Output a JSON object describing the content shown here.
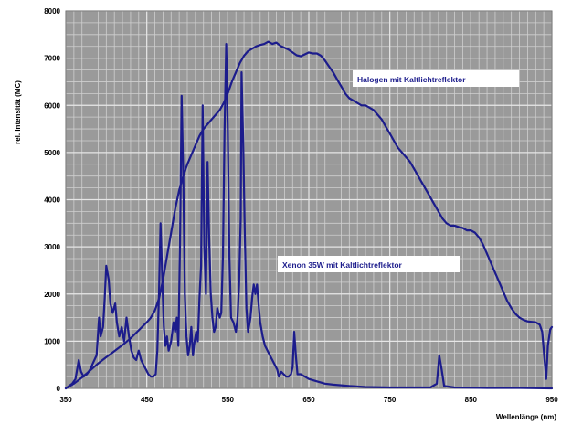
{
  "chart_data": {
    "type": "line",
    "xlabel": "Wellenlänge (nm)",
    "ylabel": "rel. Intensität (MC)",
    "xlim": [
      350,
      950
    ],
    "ylim": [
      0,
      8000
    ],
    "x_ticks": [
      350,
      450,
      550,
      650,
      750,
      850,
      950
    ],
    "x_tick_labels": [
      "350",
      "450",
      "550",
      "650",
      "750",
      "850",
      "950"
    ],
    "y_ticks": [
      0,
      1000,
      2000,
      3000,
      4000,
      5000,
      6000,
      7000,
      8000
    ],
    "y_tick_labels": [
      "0",
      "1000",
      "2000",
      "3000",
      "4000",
      "5000",
      "6000",
      "7000",
      "8000"
    ],
    "grid": true,
    "plot_background": "#9a9a9a",
    "grid_color": "#cfcfcf",
    "series": [
      {
        "name": "Halogen mit Kaltlichtreflektor",
        "color": "#1c1c8c",
        "points": [
          [
            350,
            0
          ],
          [
            360,
            100
          ],
          [
            370,
            230
          ],
          [
            380,
            380
          ],
          [
            390,
            530
          ],
          [
            400,
            660
          ],
          [
            410,
            790
          ],
          [
            420,
            920
          ],
          [
            430,
            1060
          ],
          [
            440,
            1230
          ],
          [
            450,
            1400
          ],
          [
            455,
            1500
          ],
          [
            460,
            1650
          ],
          [
            465,
            1900
          ],
          [
            470,
            2300
          ],
          [
            475,
            2800
          ],
          [
            480,
            3300
          ],
          [
            485,
            3800
          ],
          [
            490,
            4200
          ],
          [
            495,
            4500
          ],
          [
            500,
            4750
          ],
          [
            505,
            4950
          ],
          [
            510,
            5150
          ],
          [
            515,
            5350
          ],
          [
            520,
            5500
          ],
          [
            525,
            5600
          ],
          [
            530,
            5700
          ],
          [
            535,
            5800
          ],
          [
            540,
            5900
          ],
          [
            545,
            6050
          ],
          [
            550,
            6250
          ],
          [
            555,
            6500
          ],
          [
            560,
            6700
          ],
          [
            565,
            6900
          ],
          [
            570,
            7050
          ],
          [
            575,
            7150
          ],
          [
            580,
            7200
          ],
          [
            585,
            7250
          ],
          [
            590,
            7280
          ],
          [
            595,
            7300
          ],
          [
            600,
            7350
          ],
          [
            605,
            7300
          ],
          [
            610,
            7330
          ],
          [
            615,
            7260
          ],
          [
            620,
            7220
          ],
          [
            625,
            7180
          ],
          [
            630,
            7120
          ],
          [
            635,
            7060
          ],
          [
            640,
            7040
          ],
          [
            645,
            7080
          ],
          [
            650,
            7120
          ],
          [
            655,
            7100
          ],
          [
            660,
            7100
          ],
          [
            665,
            7050
          ],
          [
            670,
            6950
          ],
          [
            675,
            6820
          ],
          [
            680,
            6700
          ],
          [
            685,
            6550
          ],
          [
            690,
            6400
          ],
          [
            695,
            6250
          ],
          [
            700,
            6150
          ],
          [
            705,
            6100
          ],
          [
            710,
            6050
          ],
          [
            715,
            6000
          ],
          [
            720,
            6000
          ],
          [
            725,
            5950
          ],
          [
            730,
            5900
          ],
          [
            735,
            5800
          ],
          [
            740,
            5700
          ],
          [
            745,
            5550
          ],
          [
            750,
            5400
          ],
          [
            755,
            5250
          ],
          [
            760,
            5100
          ],
          [
            765,
            5000
          ],
          [
            770,
            4900
          ],
          [
            775,
            4800
          ],
          [
            780,
            4650
          ],
          [
            785,
            4500
          ],
          [
            790,
            4350
          ],
          [
            795,
            4200
          ],
          [
            800,
            4050
          ],
          [
            805,
            3900
          ],
          [
            810,
            3750
          ],
          [
            815,
            3600
          ],
          [
            820,
            3500
          ],
          [
            825,
            3450
          ],
          [
            830,
            3450
          ],
          [
            835,
            3420
          ],
          [
            840,
            3400
          ],
          [
            845,
            3350
          ],
          [
            850,
            3350
          ],
          [
            855,
            3300
          ],
          [
            860,
            3200
          ],
          [
            865,
            3050
          ],
          [
            870,
            2850
          ],
          [
            875,
            2650
          ],
          [
            880,
            2450
          ],
          [
            885,
            2250
          ],
          [
            890,
            2050
          ],
          [
            895,
            1850
          ],
          [
            900,
            1700
          ],
          [
            905,
            1580
          ],
          [
            910,
            1500
          ],
          [
            915,
            1450
          ],
          [
            920,
            1420
          ],
          [
            925,
            1410
          ],
          [
            930,
            1400
          ],
          [
            935,
            1350
          ],
          [
            938,
            1200
          ],
          [
            941,
            600
          ],
          [
            943,
            200
          ],
          [
            945,
            900
          ],
          [
            948,
            1250
          ],
          [
            950,
            1300
          ]
        ]
      },
      {
        "name": "Xenon 35W mit Kaltlichtreflektor",
        "color": "#1c1c8c",
        "points": [
          [
            350,
            0
          ],
          [
            358,
            100
          ],
          [
            362,
            200
          ],
          [
            366,
            600
          ],
          [
            369,
            350
          ],
          [
            372,
            250
          ],
          [
            376,
            300
          ],
          [
            380,
            400
          ],
          [
            384,
            550
          ],
          [
            388,
            700
          ],
          [
            391,
            1500
          ],
          [
            393,
            1100
          ],
          [
            396,
            1300
          ],
          [
            398,
            1900
          ],
          [
            400,
            2600
          ],
          [
            403,
            2300
          ],
          [
            405,
            1800
          ],
          [
            408,
            1600
          ],
          [
            411,
            1800
          ],
          [
            413,
            1400
          ],
          [
            416,
            1100
          ],
          [
            419,
            1300
          ],
          [
            422,
            1000
          ],
          [
            425,
            1500
          ],
          [
            428,
            1100
          ],
          [
            431,
            800
          ],
          [
            434,
            650
          ],
          [
            437,
            600
          ],
          [
            440,
            800
          ],
          [
            443,
            600
          ],
          [
            446,
            500
          ],
          [
            449,
            400
          ],
          [
            452,
            300
          ],
          [
            455,
            250
          ],
          [
            458,
            250
          ],
          [
            461,
            300
          ],
          [
            463,
            800
          ],
          [
            465,
            2000
          ],
          [
            467,
            3500
          ],
          [
            469,
            2400
          ],
          [
            471,
            1300
          ],
          [
            473,
            900
          ],
          [
            475,
            1100
          ],
          [
            477,
            800
          ],
          [
            480,
            1000
          ],
          [
            483,
            1400
          ],
          [
            485,
            1200
          ],
          [
            487,
            1500
          ],
          [
            489,
            900
          ],
          [
            491,
            3000
          ],
          [
            493,
            6200
          ],
          [
            495,
            4500
          ],
          [
            497,
            2000
          ],
          [
            499,
            1100
          ],
          [
            501,
            700
          ],
          [
            503,
            900
          ],
          [
            505,
            1300
          ],
          [
            507,
            700
          ],
          [
            509,
            1000
          ],
          [
            511,
            1200
          ],
          [
            513,
            1000
          ],
          [
            515,
            1900
          ],
          [
            517,
            2600
          ],
          [
            519,
            6000
          ],
          [
            521,
            3000
          ],
          [
            523,
            2000
          ],
          [
            525,
            4800
          ],
          [
            527,
            3200
          ],
          [
            529,
            2000
          ],
          [
            531,
            1500
          ],
          [
            533,
            1200
          ],
          [
            535,
            1300
          ],
          [
            537,
            1700
          ],
          [
            540,
            1500
          ],
          [
            542,
            1600
          ],
          [
            544,
            2800
          ],
          [
            546,
            5500
          ],
          [
            548,
            7300
          ],
          [
            550,
            5500
          ],
          [
            552,
            2800
          ],
          [
            554,
            1500
          ],
          [
            557,
            1400
          ],
          [
            560,
            1200
          ],
          [
            562,
            1500
          ],
          [
            564,
            2200
          ],
          [
            566,
            3600
          ],
          [
            567,
            6700
          ],
          [
            569,
            5200
          ],
          [
            571,
            3200
          ],
          [
            573,
            1700
          ],
          [
            575,
            1200
          ],
          [
            578,
            1500
          ],
          [
            580,
            1900
          ],
          [
            582,
            2200
          ],
          [
            584,
            2000
          ],
          [
            586,
            2200
          ],
          [
            588,
            1800
          ],
          [
            590,
            1400
          ],
          [
            593,
            1100
          ],
          [
            596,
            900
          ],
          [
            599,
            800
          ],
          [
            602,
            700
          ],
          [
            605,
            600
          ],
          [
            608,
            500
          ],
          [
            611,
            400
          ],
          [
            613,
            250
          ],
          [
            616,
            350
          ],
          [
            619,
            300
          ],
          [
            622,
            250
          ],
          [
            625,
            250
          ],
          [
            628,
            300
          ],
          [
            630,
            450
          ],
          [
            632,
            1200
          ],
          [
            634,
            700
          ],
          [
            636,
            300
          ],
          [
            640,
            300
          ],
          [
            645,
            250
          ],
          [
            650,
            200
          ],
          [
            660,
            150
          ],
          [
            670,
            100
          ],
          [
            680,
            80
          ],
          [
            700,
            50
          ],
          [
            720,
            30
          ],
          [
            750,
            20
          ],
          [
            780,
            20
          ],
          [
            800,
            20
          ],
          [
            808,
            100
          ],
          [
            811,
            700
          ],
          [
            814,
            400
          ],
          [
            817,
            50
          ],
          [
            830,
            20
          ],
          [
            870,
            10
          ],
          [
            910,
            10
          ],
          [
            950,
            0
          ]
        ]
      }
    ]
  }
}
